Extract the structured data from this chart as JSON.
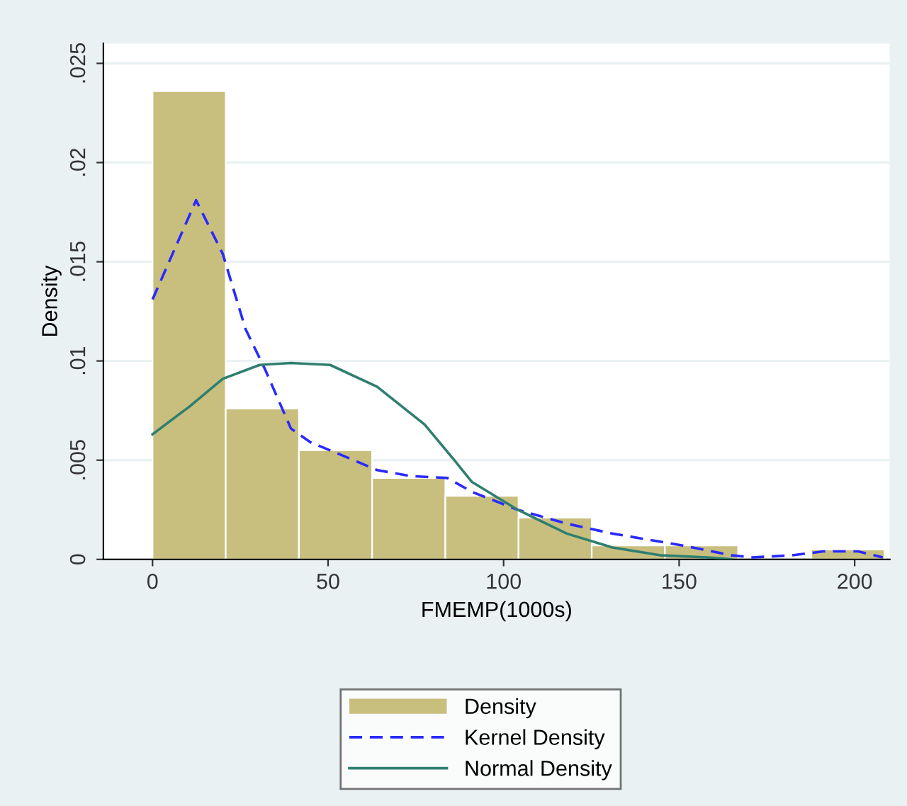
{
  "chart_data": {
    "type": "histogram",
    "xlabel": "FMEMP(1000s)",
    "ylabel": "Density",
    "xlim": [
      -14,
      210
    ],
    "xticks": [
      0,
      50,
      100,
      150,
      200
    ],
    "ylim": [
      0,
      0.026
    ],
    "yticks": [
      {
        "value": 0,
        "label": "0"
      },
      {
        "value": 0.005,
        "label": ".005"
      },
      {
        "value": 0.01,
        "label": ".01"
      },
      {
        "value": 0.015,
        "label": ".015"
      },
      {
        "value": 0.02,
        "label": ".02"
      },
      {
        "value": 0.025,
        "label": ".025"
      }
    ],
    "grid": "y",
    "legend": "bottom",
    "series": [
      {
        "name": "Density",
        "color": "#c8bf7f",
        "bins": [
          0,
          20.85,
          41.7,
          62.55,
          83.4,
          104.25,
          125.1,
          145.95,
          166.8,
          187.65,
          208.5
        ],
        "values": [
          0.0236,
          0.0076,
          0.0055,
          0.0041,
          0.0032,
          0.0021,
          0.0007,
          0.0007,
          0,
          0.0005
        ]
      },
      {
        "name": "Kernel Density",
        "type": "line",
        "color": "#2a2aff",
        "line_style": "dashed",
        "x": [
          0,
          12.4,
          20,
          26.5,
          32,
          39.4,
          45,
          54.6,
          64,
          73.5,
          84,
          91,
          104,
          118,
          131,
          151,
          165,
          171,
          182,
          191,
          201,
          208
        ],
        "values": [
          0.0131,
          0.0181,
          0.0154,
          0.0116,
          0.0096,
          0.0066,
          0.0059,
          0.0052,
          0.0045,
          0.0042,
          0.0041,
          0.0034,
          0.0025,
          0.0018,
          0.0013,
          0.0007,
          0.0002,
          0.0001,
          0.0002,
          0.0004,
          0.0004,
          0.0001
        ]
      },
      {
        "name": "Normal Density",
        "type": "line",
        "color": "#2f7f6f",
        "line_style": "solid",
        "x": [
          0,
          10.5,
          20,
          30.5,
          39.4,
          50.6,
          64,
          77.5,
          85.5,
          91,
          104,
          118,
          131,
          145,
          158,
          165
        ],
        "values": [
          0.0063,
          0.0077,
          0.0091,
          0.0098,
          0.0099,
          0.0098,
          0.0087,
          0.0068,
          0.0051,
          0.0039,
          0.0025,
          0.0013,
          0.0006,
          0.0002,
          0.0001,
          0
        ]
      }
    ]
  }
}
